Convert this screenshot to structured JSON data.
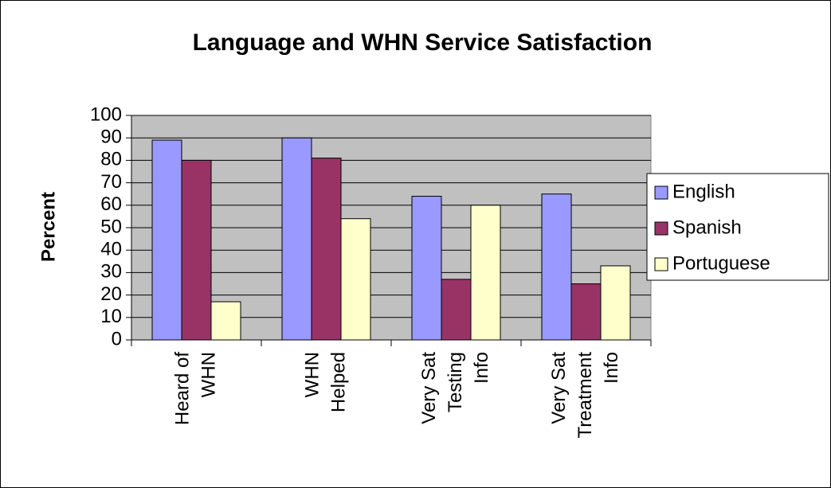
{
  "chart_data": {
    "type": "bar",
    "title": "Language and WHN Service Satisfaction",
    "y_label": "Percent",
    "categories": [
      [
        "Heard of",
        "WHN"
      ],
      [
        "WHN",
        "Helped"
      ],
      [
        "Very Sat",
        "Testing",
        "Info"
      ],
      [
        "Very Sat",
        "Treatment",
        "Info"
      ]
    ],
    "series": [
      {
        "name": "English",
        "color": "#9999ff",
        "values": [
          89,
          90,
          64,
          65
        ]
      },
      {
        "name": "Spanish",
        "color": "#993366",
        "values": [
          80,
          81,
          27,
          25
        ]
      },
      {
        "name": "Portuguese",
        "color": "#ffffcc",
        "values": [
          17,
          54,
          60,
          33
        ]
      }
    ],
    "ylim": [
      0,
      100
    ],
    "yticks": [
      0,
      10,
      20,
      30,
      40,
      50,
      60,
      70,
      80,
      90,
      100
    ],
    "grid": true,
    "legend": "right",
    "plot_background": "#c0c0c0"
  }
}
